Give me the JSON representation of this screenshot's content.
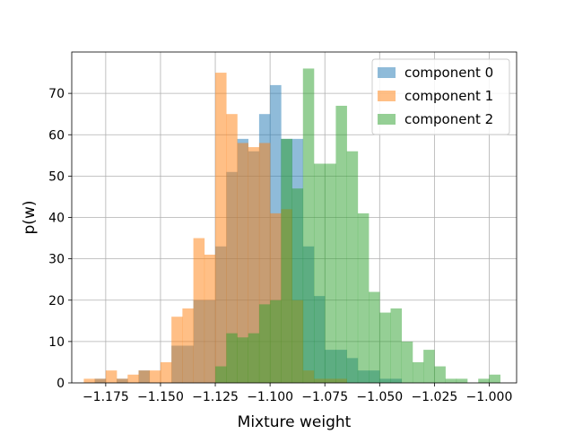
{
  "chart_data": {
    "type": "histogram",
    "xlabel": "Mixture weight",
    "ylabel": "p(w)",
    "xlim": [
      -1.1905,
      -0.9875
    ],
    "ylim": [
      0,
      80
    ],
    "grid": true,
    "legend_position": "top-right",
    "bin_width": 0.005,
    "x_ticks": [
      -1.175,
      -1.15,
      -1.125,
      -1.1,
      -1.075,
      -1.05,
      -1.025,
      -1.0
    ],
    "x_tick_labels": [
      "−1.175",
      "−1.150",
      "−1.125",
      "−1.100",
      "−1.075",
      "−1.050",
      "−1.025",
      "−1.000"
    ],
    "y_ticks": [
      0,
      10,
      20,
      30,
      40,
      50,
      60,
      70
    ],
    "y_tick_labels": [
      "0",
      "10",
      "20",
      "30",
      "40",
      "50",
      "60",
      "70"
    ],
    "series": [
      {
        "name": "component 0",
        "color": "#1f77b4",
        "alpha": 0.5,
        "bin_starts": [
          -1.18,
          -1.175,
          -1.17,
          -1.165,
          -1.16,
          -1.155,
          -1.15,
          -1.145,
          -1.14,
          -1.135,
          -1.13,
          -1.125,
          -1.12,
          -1.115,
          -1.11,
          -1.105,
          -1.1,
          -1.095,
          -1.09,
          -1.085,
          -1.08,
          -1.075,
          -1.07,
          -1.065,
          -1.06,
          -1.055,
          -1.05,
          -1.045
        ],
        "counts": [
          1,
          0,
          1,
          0,
          3,
          0,
          0,
          9,
          9,
          20,
          20,
          33,
          51,
          59,
          56,
          65,
          72,
          59,
          59,
          33,
          21,
          8,
          8,
          6,
          3,
          3,
          1,
          1
        ]
      },
      {
        "name": "component 1",
        "color": "#ff7f0e",
        "alpha": 0.5,
        "bin_starts": [
          -1.185,
          -1.18,
          -1.175,
          -1.17,
          -1.165,
          -1.16,
          -1.155,
          -1.15,
          -1.145,
          -1.14,
          -1.135,
          -1.13,
          -1.125,
          -1.12,
          -1.115,
          -1.11,
          -1.105,
          -1.1,
          -1.095,
          -1.09,
          -1.085,
          -1.08,
          -1.075,
          -1.07
        ],
        "counts": [
          1,
          1,
          3,
          1,
          2,
          3,
          3,
          5,
          16,
          18,
          35,
          31,
          75,
          65,
          58,
          57,
          58,
          41,
          42,
          20,
          3,
          1,
          1,
          1
        ]
      },
      {
        "name": "component 2",
        "color": "#2ca02c",
        "alpha": 0.5,
        "bin_starts": [
          -1.125,
          -1.12,
          -1.115,
          -1.11,
          -1.105,
          -1.1,
          -1.095,
          -1.09,
          -1.085,
          -1.08,
          -1.075,
          -1.07,
          -1.065,
          -1.06,
          -1.055,
          -1.05,
          -1.045,
          -1.04,
          -1.035,
          -1.03,
          -1.025,
          -1.02,
          -1.015,
          -1.01,
          -1.005,
          -1.0
        ],
        "counts": [
          4,
          12,
          11,
          12,
          19,
          20,
          59,
          47,
          76,
          53,
          53,
          67,
          56,
          41,
          22,
          17,
          18,
          10,
          5,
          8,
          4,
          1,
          1,
          0,
          1,
          2
        ]
      }
    ]
  }
}
